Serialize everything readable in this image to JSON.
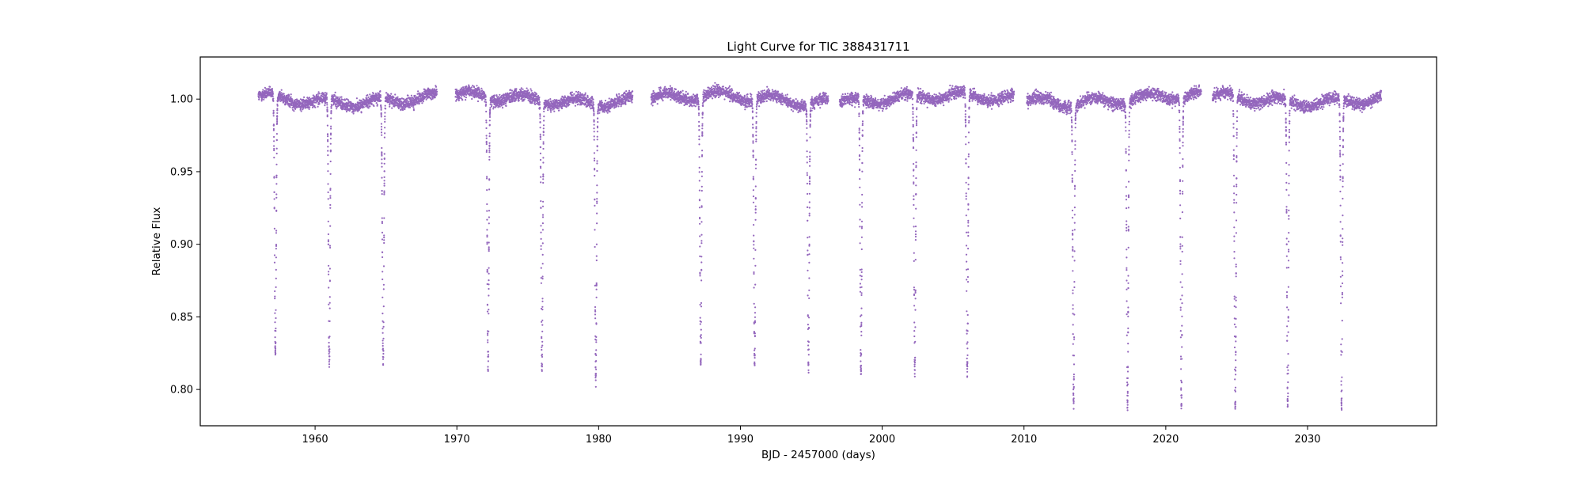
{
  "chart_data": {
    "type": "scatter",
    "title": "Light Curve for TIC 388431711",
    "xlabel": "BJD - 2457000 (days)",
    "ylabel": "Relative Flux",
    "xlim": [
      1951.9,
      2039.1
    ],
    "ylim": [
      0.775,
      1.029
    ],
    "xticks": [
      1960,
      1970,
      1980,
      1990,
      2000,
      2010,
      2020,
      2030
    ],
    "yticks": [
      0.8,
      0.85,
      0.9,
      0.95,
      1.0
    ],
    "grid": false,
    "legend": "none",
    "color": "#9467bd",
    "data_segments": [
      [
        1956.0,
        1968.6
      ],
      [
        1969.9,
        1982.4
      ],
      [
        1983.7,
        1996.2
      ],
      [
        1997.0,
        2009.3
      ],
      [
        2010.2,
        2022.5
      ],
      [
        2023.3,
        2035.2
      ]
    ],
    "eclipses": [
      {
        "x": 1957.2,
        "min_flux": 0.824
      },
      {
        "x": 1961.0,
        "min_flux": 0.818
      },
      {
        "x": 1964.8,
        "min_flux": 0.817
      },
      {
        "x": 1972.2,
        "min_flux": 0.813
      },
      {
        "x": 1976.0,
        "min_flux": 0.815
      },
      {
        "x": 1979.8,
        "min_flux": 0.809
      },
      {
        "x": 1987.2,
        "min_flux": 0.818
      },
      {
        "x": 1991.0,
        "min_flux": 0.817
      },
      {
        "x": 1994.8,
        "min_flux": 0.817
      },
      {
        "x": 1998.5,
        "min_flux": 0.811
      },
      {
        "x": 2002.3,
        "min_flux": 0.81
      },
      {
        "x": 2006.0,
        "min_flux": 0.809
      },
      {
        "x": 2013.5,
        "min_flux": 0.791
      },
      {
        "x": 2017.3,
        "min_flux": 0.789
      },
      {
        "x": 2021.1,
        "min_flux": 0.789
      },
      {
        "x": 2024.9,
        "min_flux": 0.786
      },
      {
        "x": 2028.6,
        "min_flux": 0.789
      },
      {
        "x": 2032.4,
        "min_flux": 0.787
      }
    ],
    "baseline_flux": 1.0,
    "baseline_scatter": 0.004
  }
}
